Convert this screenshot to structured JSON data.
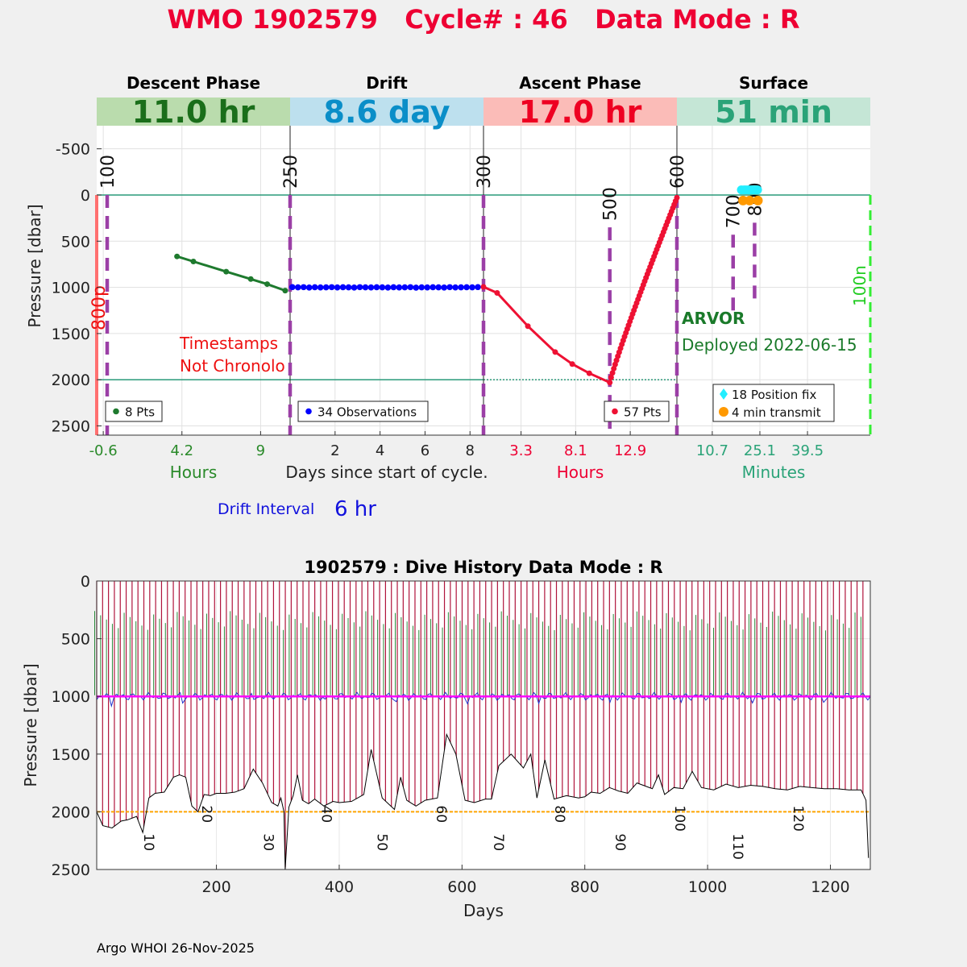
{
  "header": {
    "title": "WMO 1902579   Cycle# : 46   Data Mode : R",
    "color": "#ee0033"
  },
  "chart_data": [
    {
      "type": "line",
      "name": "cycle-profile",
      "ylabel": "Pressure [dbar]",
      "ylim": [
        2600,
        -750
      ],
      "yticks": [
        -500,
        0,
        500,
        1000,
        1500,
        2000,
        2500
      ],
      "xlabel_center": "Days since start of cycle.",
      "drift_interval_label": "Drift Interval",
      "drift_interval_value": "6 hr",
      "float_type": "ARVOR",
      "deployed": "Deployed 2022-06-15",
      "annotation_timestamps": [
        "Timestamps",
        "Not Chronolo"
      ],
      "reference_lines": [
        0,
        2000
      ],
      "panels": [
        {
          "key": "descent",
          "phase_title": "Descent Phase",
          "duration": "11.0 hr",
          "band_color": "#badcad",
          "text_color": "#1a6e1a",
          "axis_label": "Hours",
          "axis_color": "#2a8a2a",
          "xlim": [
            -1.0,
            10.8
          ],
          "xticks": [
            -0.6,
            4.2,
            9
          ],
          "xtick_labels": [
            "-0.6",
            "4.2",
            "9"
          ],
          "legend": "8 Pts",
          "marker_color": "#1e7a2e",
          "series_x": [
            3.9,
            4.9,
            6.9,
            8.4,
            9.4,
            10.5
          ],
          "series_y": [
            665,
            720,
            830,
            910,
            965,
            1035
          ],
          "markers": [
            {
              "x": -0.0,
              "label": "100",
              "y_top": 0,
              "y_bottom": 2600
            }
          ],
          "side_label": "800p"
        },
        {
          "key": "drift",
          "phase_title": "Drift",
          "duration": "8.6 day",
          "band_color": "#bde0ee",
          "text_color": "#0a8ec8",
          "axis_label": "",
          "axis_color": "#222222",
          "xlim": [
            0,
            8.6
          ],
          "xticks": [
            2,
            4,
            6,
            8
          ],
          "xtick_labels": [
            "2",
            "4",
            "6",
            "8"
          ],
          "legend": "34 Observations",
          "marker_color": "#0000ff",
          "drift_start": 0.1,
          "drift_step": 0.25,
          "drift_values": [
            997,
            1000,
            998,
            1002,
            999,
            1001,
            1000,
            998,
            1001,
            999,
            1000,
            1002,
            998,
            1000,
            1001,
            999,
            1000,
            1002,
            999,
            1001,
            1000,
            998,
            1003,
            1000,
            1001,
            999,
            1000,
            1002,
            998,
            1001,
            1000,
            999,
            1000,
            997
          ],
          "markers": [
            {
              "x": 0,
              "label": "250",
              "y_top": 0,
              "y_bottom": 2600
            }
          ],
          "side_label": ""
        },
        {
          "key": "ascent",
          "phase_title": "Ascent Phase",
          "duration": "17.0 hr",
          "band_color": "#fbbcb8",
          "text_color": "#ee0022",
          "axis_label": "Hours",
          "axis_color": "#ee0033",
          "xlim": [
            0,
            17.0
          ],
          "xticks": [
            3.3,
            8.1,
            12.9
          ],
          "xtick_labels": [
            "3.3",
            "8.1",
            "12.9"
          ],
          "legend": "57 Pts",
          "marker_color": "#ee1133",
          "series_x": [
            0.0,
            1.2,
            3.9,
            6.3,
            7.8,
            9.3,
            11.1
          ],
          "series_y": [
            995,
            1060,
            1420,
            1700,
            1830,
            1930,
            2030
          ],
          "ascent_end_x": 17.0,
          "ascent_end_y": 30,
          "ascent_points": 50,
          "markers": [
            {
              "x": 0,
              "label": "300",
              "y_top": 0,
              "y_bottom": 2600
            },
            {
              "x": 11.1,
              "label": "500",
              "y_top": 350,
              "y_bottom": 2600
            },
            {
              "x": 17.0,
              "label": "600",
              "y_top": 0,
              "y_bottom": 2600
            }
          ],
          "side_label": ""
        },
        {
          "key": "surface",
          "phase_title": "Surface",
          "duration": "51 min",
          "band_color": "#c5e6d6",
          "text_color": "#2aa378",
          "axis_label": "Minutes",
          "axis_color": "#2aa378",
          "xlim": [
            0,
            58.5
          ],
          "xticks": [
            10.7,
            25.1,
            39.5
          ],
          "xtick_labels": [
            "10.7",
            "25.1",
            "39.5"
          ],
          "legend": "18 Position fix",
          "legend2": "4 min transmit",
          "fix_color": "#22eeff",
          "transmit_color": "#ff9900",
          "fix_x": [
            19.5,
            20.3,
            20.9,
            21.5,
            22.1,
            22.7,
            23.3,
            23.9,
            24.4
          ],
          "transmit_x": [
            20.0,
            22.0,
            24.5
          ],
          "markers": [
            {
              "x": 17.0,
              "label": "700",
              "y_top": 430,
              "y_bottom": 1300
            },
            {
              "x": 23.5,
              "label": "800",
              "y_top": 300,
              "y_bottom": 1200
            }
          ],
          "side_label": "100n"
        }
      ]
    },
    {
      "type": "line",
      "name": "dive-history",
      "title": "1902579 : Dive History      Data Mode : R",
      "xlabel": "Days",
      "ylabel": "Pressure [dbar]",
      "xlim": [
        5,
        1265
      ],
      "ylim": [
        2500,
        0
      ],
      "xticks": [
        200,
        400,
        600,
        800,
        1000,
        1200
      ],
      "yticks": [
        0,
        500,
        1000,
        1500,
        2000,
        2500
      ],
      "reference_pressure": 2000,
      "park_pressure": 1000,
      "cycle_start_day": 5,
      "cycle_period": 9.6,
      "cycle_count": 131,
      "bottom_profile_days": [
        5,
        15,
        30,
        45,
        55,
        70,
        80,
        90,
        100,
        115,
        130,
        140,
        150,
        160,
        170,
        180,
        190,
        200,
        215,
        230,
        245,
        260,
        275,
        290,
        300,
        305,
        310,
        312,
        318,
        325,
        332,
        340,
        350,
        360,
        375,
        390,
        400,
        420,
        440,
        452,
        470,
        490,
        500,
        510,
        525,
        540,
        560,
        575,
        590,
        605,
        620,
        638,
        648,
        660,
        680,
        700,
        712,
        722,
        735,
        750,
        770,
        790,
        800,
        810,
        825,
        840,
        855,
        870,
        885,
        900,
        910,
        920,
        930,
        945,
        960,
        975,
        990,
        1010,
        1030,
        1050,
        1070,
        1090,
        1110,
        1130,
        1150,
        1170,
        1190,
        1210,
        1230,
        1250,
        1258,
        1262
      ],
      "bottom_profile_pressure": [
        2000,
        2120,
        2140,
        2080,
        2070,
        2040,
        2180,
        1880,
        1840,
        1830,
        1700,
        1680,
        1700,
        1950,
        2000,
        1850,
        1860,
        1840,
        1840,
        1830,
        1800,
        1630,
        1750,
        1920,
        1950,
        1880,
        2000,
        2500,
        1960,
        1860,
        1680,
        1900,
        1930,
        1890,
        1950,
        1910,
        1920,
        1910,
        1850,
        1460,
        1880,
        1980,
        1700,
        1900,
        1950,
        1900,
        1880,
        1330,
        1500,
        1900,
        1920,
        1890,
        1890,
        1600,
        1500,
        1620,
        1500,
        1880,
        1550,
        1890,
        1860,
        1880,
        1870,
        1830,
        1840,
        1790,
        1820,
        1840,
        1750,
        1780,
        1800,
        1680,
        1850,
        1790,
        1800,
        1650,
        1790,
        1810,
        1760,
        1790,
        1770,
        1780,
        1800,
        1810,
        1780,
        1790,
        1800,
        1800,
        1810,
        1810,
        1900,
        2400
      ],
      "cycle_labels": [
        {
          "day": 90,
          "label": "10"
        },
        {
          "day": 185,
          "label": "20"
        },
        {
          "day": 285,
          "label": "30"
        },
        {
          "day": 380,
          "label": "40"
        },
        {
          "day": 470,
          "label": "50"
        },
        {
          "day": 567,
          "label": "60"
        },
        {
          "day": 660,
          "label": "70"
        },
        {
          "day": 760,
          "label": "80"
        },
        {
          "day": 858,
          "label": "90"
        },
        {
          "day": 955,
          "label": "100"
        },
        {
          "day": 1050,
          "label": "110"
        },
        {
          "day": 1148,
          "label": "120"
        }
      ],
      "colors": {
        "cycle_line": "#b0143c",
        "descent_line": "#2a8a3a",
        "park": "#ff00ff",
        "drift": "#2233cc",
        "reference": "#ffa500",
        "bottom": "#000000"
      }
    }
  ],
  "footer": {
    "credit": "Argo WHOI 26-Nov-2025"
  }
}
